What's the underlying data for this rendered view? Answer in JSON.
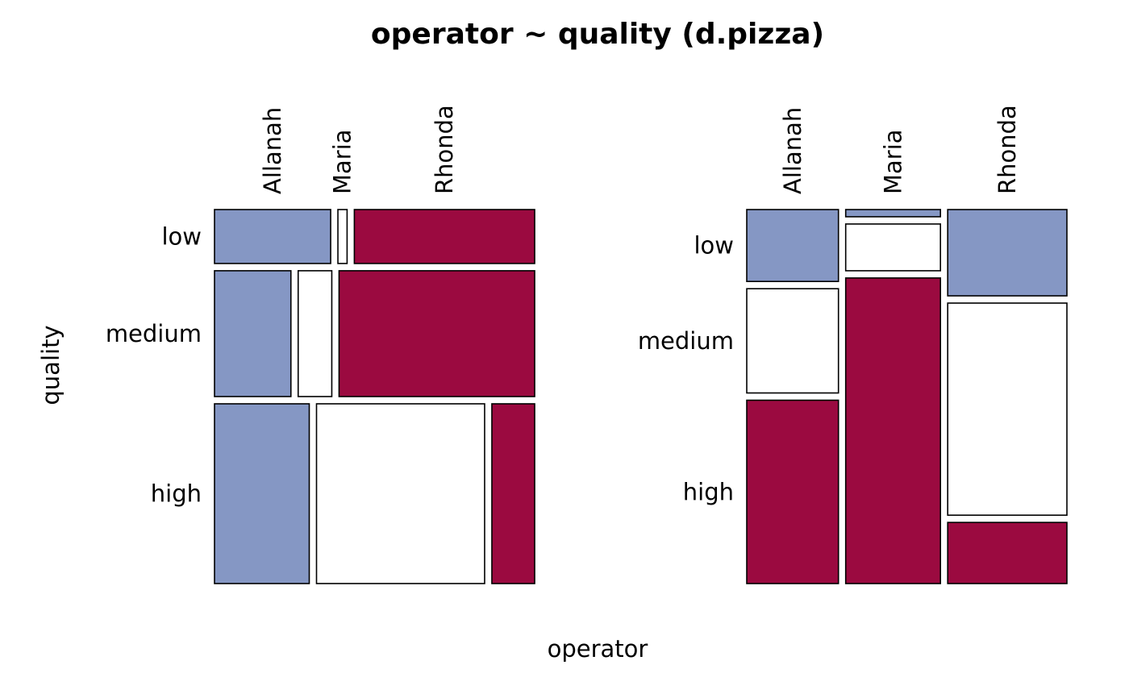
{
  "chart_data": {
    "type": "mosaic",
    "title": "operator ~ quality (d.pizza)",
    "xlabel": "operator",
    "ylabel": "quality",
    "colors": {
      "above": "#8597C4",
      "neutral": "#FFFFFF",
      "below": "#9B0A40",
      "border": "#000000"
    },
    "panels": [
      {
        "name": "left",
        "rows": [
          "low",
          "medium",
          "high"
        ],
        "columns": [
          "Allanah",
          "Maria",
          "Rhonda"
        ],
        "row_shares": [
          0.15,
          0.35,
          0.5
        ],
        "cells": [
          [
            {
              "column": "Allanah",
              "share": 0.38,
              "color": "above"
            },
            {
              "column": "Maria",
              "share": 0.03,
              "color": "neutral"
            },
            {
              "column": "Rhonda",
              "share": 0.59,
              "color": "below"
            }
          ],
          [
            {
              "column": "Allanah",
              "share": 0.25,
              "color": "above"
            },
            {
              "column": "Maria",
              "share": 0.11,
              "color": "neutral"
            },
            {
              "column": "Rhonda",
              "share": 0.64,
              "color": "below"
            }
          ],
          [
            {
              "column": "Allanah",
              "share": 0.31,
              "color": "above"
            },
            {
              "column": "Maria",
              "share": 0.55,
              "color": "neutral"
            },
            {
              "column": "Rhonda",
              "share": 0.14,
              "color": "below"
            }
          ]
        ]
      },
      {
        "name": "right",
        "rows": [
          "low",
          "medium",
          "high"
        ],
        "columns": [
          "Allanah",
          "Maria",
          "Rhonda"
        ],
        "column_shares": [
          0.3,
          0.31,
          0.39
        ],
        "cells": [
          [
            {
              "row": "low",
              "share": 0.2,
              "color": "above"
            },
            {
              "row": "medium",
              "share": 0.29,
              "color": "neutral"
            },
            {
              "row": "high",
              "share": 0.51,
              "color": "below"
            }
          ],
          [
            {
              "row": "low",
              "share": 0.02,
              "color": "above"
            },
            {
              "row": "medium",
              "share": 0.13,
              "color": "neutral"
            },
            {
              "row": "high",
              "share": 0.85,
              "color": "below"
            }
          ],
          [
            {
              "row": "low",
              "share": 0.24,
              "color": "above"
            },
            {
              "row": "medium",
              "share": 0.59,
              "color": "neutral"
            },
            {
              "row": "high",
              "share": 0.17,
              "color": "below"
            }
          ]
        ]
      }
    ]
  }
}
